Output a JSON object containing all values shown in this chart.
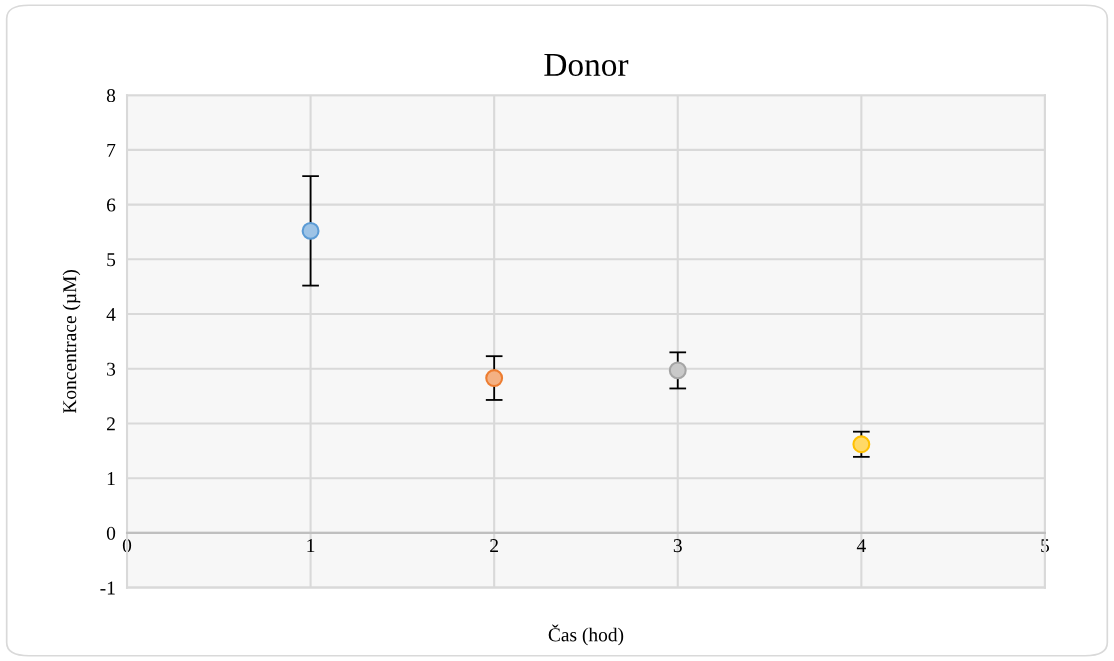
{
  "chart_data": {
    "type": "scatter",
    "title": "Donor",
    "xlabel": "Čas (hod)",
    "ylabel": "Koncentrace (µM)",
    "x": [
      1,
      2,
      3,
      4
    ],
    "values": [
      5.52,
      2.83,
      2.97,
      1.62
    ],
    "errors": [
      1.0,
      0.4,
      0.33,
      0.23
    ],
    "colors": [
      "#5b9bd5",
      "#ed7d31",
      "#a5a5a5",
      "#ffc000"
    ],
    "xlim": [
      0,
      5
    ],
    "ylim": [
      -1,
      8
    ],
    "xticks": [
      0,
      1,
      2,
      3,
      4,
      5
    ],
    "yticks": [
      -1,
      0,
      1,
      2,
      3,
      4,
      5,
      6,
      7,
      8
    ],
    "grid": true,
    "marker": "circle"
  }
}
